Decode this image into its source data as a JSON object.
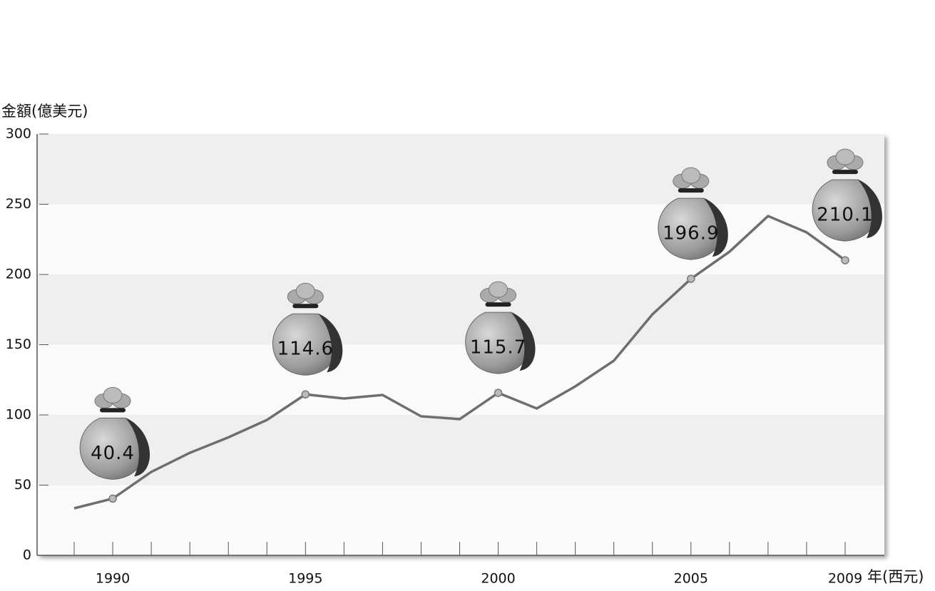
{
  "chart_data": {
    "type": "line",
    "y_label": "金額(億美元)",
    "x_label": "年(西元)",
    "categories": [
      null,
      "1990",
      null,
      null,
      null,
      null,
      "1995",
      null,
      null,
      null,
      null,
      "2000",
      null,
      null,
      null,
      null,
      "2005",
      null,
      null,
      null,
      "2009"
    ],
    "series": [
      {
        "name": null,
        "color": "#6e6e6e",
        "values": [
          33.5,
          40.4,
          59.4,
          73,
          84,
          96.4,
          114.6,
          111.7,
          114.2,
          99,
          97,
          115.7,
          104.6,
          120.3,
          138.6,
          171.6,
          196.9,
          216.2,
          241.6,
          230,
          210.1
        ],
        "value_labels": [
          null,
          "40.4",
          null,
          null,
          null,
          null,
          "114.6",
          null,
          null,
          null,
          null,
          "115.7",
          null,
          null,
          null,
          null,
          "196.9",
          null,
          null,
          null,
          "210.1"
        ]
      }
    ],
    "ylim": [
      0,
      300
    ],
    "yticks": [
      0,
      50,
      100,
      150,
      200,
      250,
      300
    ],
    "grid": true
  }
}
